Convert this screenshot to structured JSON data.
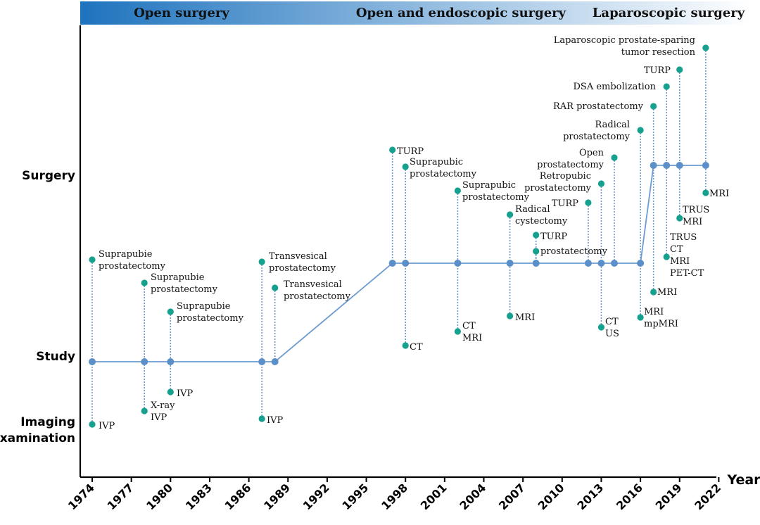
{
  "chart_data": {
    "type": "timeline",
    "xlabel": "Year",
    "xlim": [
      1974,
      2022
    ],
    "xticks": [
      "1974",
      "1977",
      "1980",
      "1983",
      "1986",
      "1989",
      "1992",
      "1995",
      "1998",
      "2001",
      "2004",
      "2007",
      "2010",
      "2013",
      "2016",
      "2019",
      "2022"
    ],
    "levels": [
      "Surgery",
      "Study",
      "Imaging examination"
    ],
    "level_labels": [
      {
        "key": "surgery",
        "lines": [
          "Surgery"
        ]
      },
      {
        "key": "study",
        "lines": [
          "Study"
        ]
      },
      {
        "key": "imaging",
        "lines": [
          "Imaging",
          "examination"
        ]
      }
    ],
    "eras": [
      {
        "label": "Open surgery"
      },
      {
        "label": "Open and endoscopic surgery"
      },
      {
        "label": "Laparoscopic  surgery"
      }
    ],
    "colors": {
      "line": "#6b9bd0",
      "node": "#5b8fc9",
      "event": "#16a08e",
      "band_start": "#1e73be",
      "band_end": "#ffffff"
    },
    "path": [
      {
        "year": 1974,
        "level": "study"
      },
      {
        "year": 1978,
        "level": "study"
      },
      {
        "year": 1980,
        "level": "study"
      },
      {
        "year": 1987,
        "level": "study"
      },
      {
        "year": 1988,
        "level": "study"
      },
      {
        "year": 1997,
        "level": "mid"
      },
      {
        "year": 1998,
        "level": "mid"
      },
      {
        "year": 2002,
        "level": "mid"
      },
      {
        "year": 2006,
        "level": "mid"
      },
      {
        "year": 2008,
        "level": "mid"
      },
      {
        "year": 2012,
        "level": "mid"
      },
      {
        "year": 2013,
        "level": "mid"
      },
      {
        "year": 2014,
        "level": "mid"
      },
      {
        "year": 2016,
        "level": "mid"
      },
      {
        "year": 2017,
        "level": "surgery"
      },
      {
        "year": 2018,
        "level": "surgery"
      },
      {
        "year": 2019,
        "level": "surgery"
      },
      {
        "year": 2021,
        "level": "surgery"
      }
    ],
    "events": [
      {
        "year": 1974,
        "category": "surgery",
        "lines": [
          "Suprapubie",
          "prostatectomy"
        ]
      },
      {
        "year": 1974,
        "category": "imaging",
        "lines": [
          "IVP"
        ]
      },
      {
        "year": 1978,
        "category": "surgery",
        "lines": [
          "Suprapubie",
          "prostatectomy"
        ]
      },
      {
        "year": 1978,
        "category": "imaging",
        "lines": [
          "X-ray",
          "IVP"
        ]
      },
      {
        "year": 1980,
        "category": "surgery",
        "lines": [
          "Suprapubie",
          "prostatectomy"
        ]
      },
      {
        "year": 1980,
        "category": "imaging",
        "lines": [
          "IVP"
        ]
      },
      {
        "year": 1987,
        "category": "surgery",
        "lines": [
          "Transvesical",
          "prostatectomy"
        ]
      },
      {
        "year": 1987,
        "category": "imaging",
        "lines": [
          "IVP"
        ]
      },
      {
        "year": 1988,
        "category": "surgery",
        "lines": [
          "Transvesical",
          "prostatectomy"
        ]
      },
      {
        "year": 1997,
        "category": "surgery",
        "lines": [
          "TURP"
        ]
      },
      {
        "year": 1998,
        "category": "surgery",
        "lines": [
          "Suprapubic",
          "prostatectomy"
        ]
      },
      {
        "year": 1998,
        "category": "imaging",
        "lines": [
          "CT"
        ]
      },
      {
        "year": 2002,
        "category": "surgery",
        "lines": [
          "Suprapubic",
          "prostatectomy"
        ]
      },
      {
        "year": 2002,
        "category": "imaging",
        "lines": [
          "CT",
          "MRI"
        ]
      },
      {
        "year": 2006,
        "category": "surgery",
        "lines": [
          "Radical",
          "cystectomy"
        ]
      },
      {
        "year": 2006,
        "category": "imaging",
        "lines": [
          "MRI"
        ]
      },
      {
        "year": 2008,
        "category": "surgery",
        "lines": [
          "TURP"
        ]
      },
      {
        "year": 2008,
        "category": "surgery",
        "lines": [
          "prostatectomy"
        ]
      },
      {
        "year": 2012,
        "category": "surgery",
        "lines": [
          "TURP"
        ]
      },
      {
        "year": 2013,
        "category": "surgery",
        "lines": [
          "Retropubic",
          "prostatectomy"
        ]
      },
      {
        "year": 2013,
        "category": "imaging",
        "lines": [
          "CT",
          "US"
        ]
      },
      {
        "year": 2014,
        "category": "surgery",
        "lines": [
          "Open",
          "prostatectomy"
        ]
      },
      {
        "year": 2016,
        "category": "surgery",
        "lines": [
          "Radical",
          "prostatectomy"
        ]
      },
      {
        "year": 2016,
        "category": "imaging",
        "lines": [
          "MRI",
          "mpMRI"
        ]
      },
      {
        "year": 2017,
        "category": "surgery",
        "lines": [
          "RAR prostatectomy"
        ]
      },
      {
        "year": 2017,
        "category": "imaging",
        "lines": [
          "MRI"
        ]
      },
      {
        "year": 2018,
        "category": "surgery",
        "lines": [
          "DSA embolization"
        ]
      },
      {
        "year": 2018,
        "category": "imaging",
        "lines": [
          "TRUS",
          "CT",
          "MRI",
          "PET-CT"
        ]
      },
      {
        "year": 2019,
        "category": "surgery",
        "lines": [
          "TURP"
        ]
      },
      {
        "year": 2019,
        "category": "imaging",
        "lines": [
          "TRUS",
          "MRI"
        ]
      },
      {
        "year": 2021,
        "category": "surgery",
        "lines": [
          "Laparoscopic prostate-sparing",
          "tumor resection"
        ]
      },
      {
        "year": 2021,
        "category": "imaging",
        "lines": [
          "MRI"
        ]
      }
    ]
  }
}
